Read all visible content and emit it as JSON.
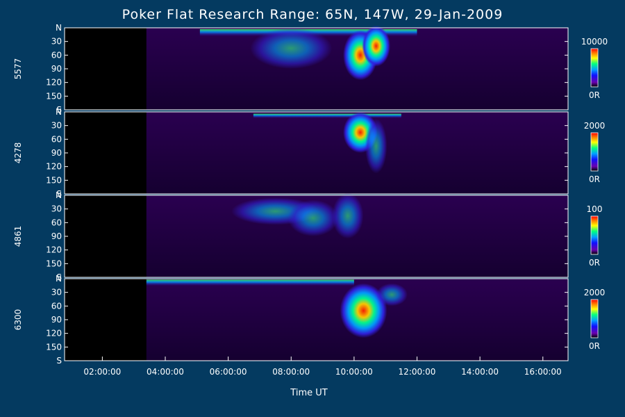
{
  "chart_data": {
    "type": "heatmap",
    "title": "Poker Flat Research Range: 65N, 147W, 29-Jan-2009",
    "xlabel": "Time UT",
    "x_ticks": [
      "02:00:00",
      "04:00:00",
      "06:00:00",
      "08:00:00",
      "10:00:00",
      "12:00:00",
      "14:00:00",
      "16:00:00"
    ],
    "x_tick_hours": [
      2,
      4,
      6,
      8,
      10,
      12,
      14,
      16
    ],
    "xlim_hours": [
      0.8,
      16.8
    ],
    "data_start_hour": 3.4,
    "y_ticks": [
      "N",
      "30",
      "60",
      "90",
      "120",
      "150",
      "S"
    ],
    "y_tick_values": [
      0,
      30,
      60,
      90,
      120,
      150,
      180
    ],
    "ylim": [
      0,
      180
    ],
    "colorscale": [
      "#000000",
      "#3a0060",
      "#6a00b0",
      "#1010ff",
      "#00a0ff",
      "#00ff80",
      "#ffff00",
      "#ff8000",
      "#ff0000"
    ],
    "panels": [
      {
        "name": "5577",
        "cmax_label": "10000",
        "cmin_label": "0R"
      },
      {
        "name": "4278",
        "cmax_label": "2000",
        "cmin_label": "0R"
      },
      {
        "name": "4861",
        "cmax_label": "100",
        "cmin_label": "0R"
      },
      {
        "name": "6300",
        "cmax_label": "2000",
        "cmin_label": "0R"
      }
    ]
  }
}
